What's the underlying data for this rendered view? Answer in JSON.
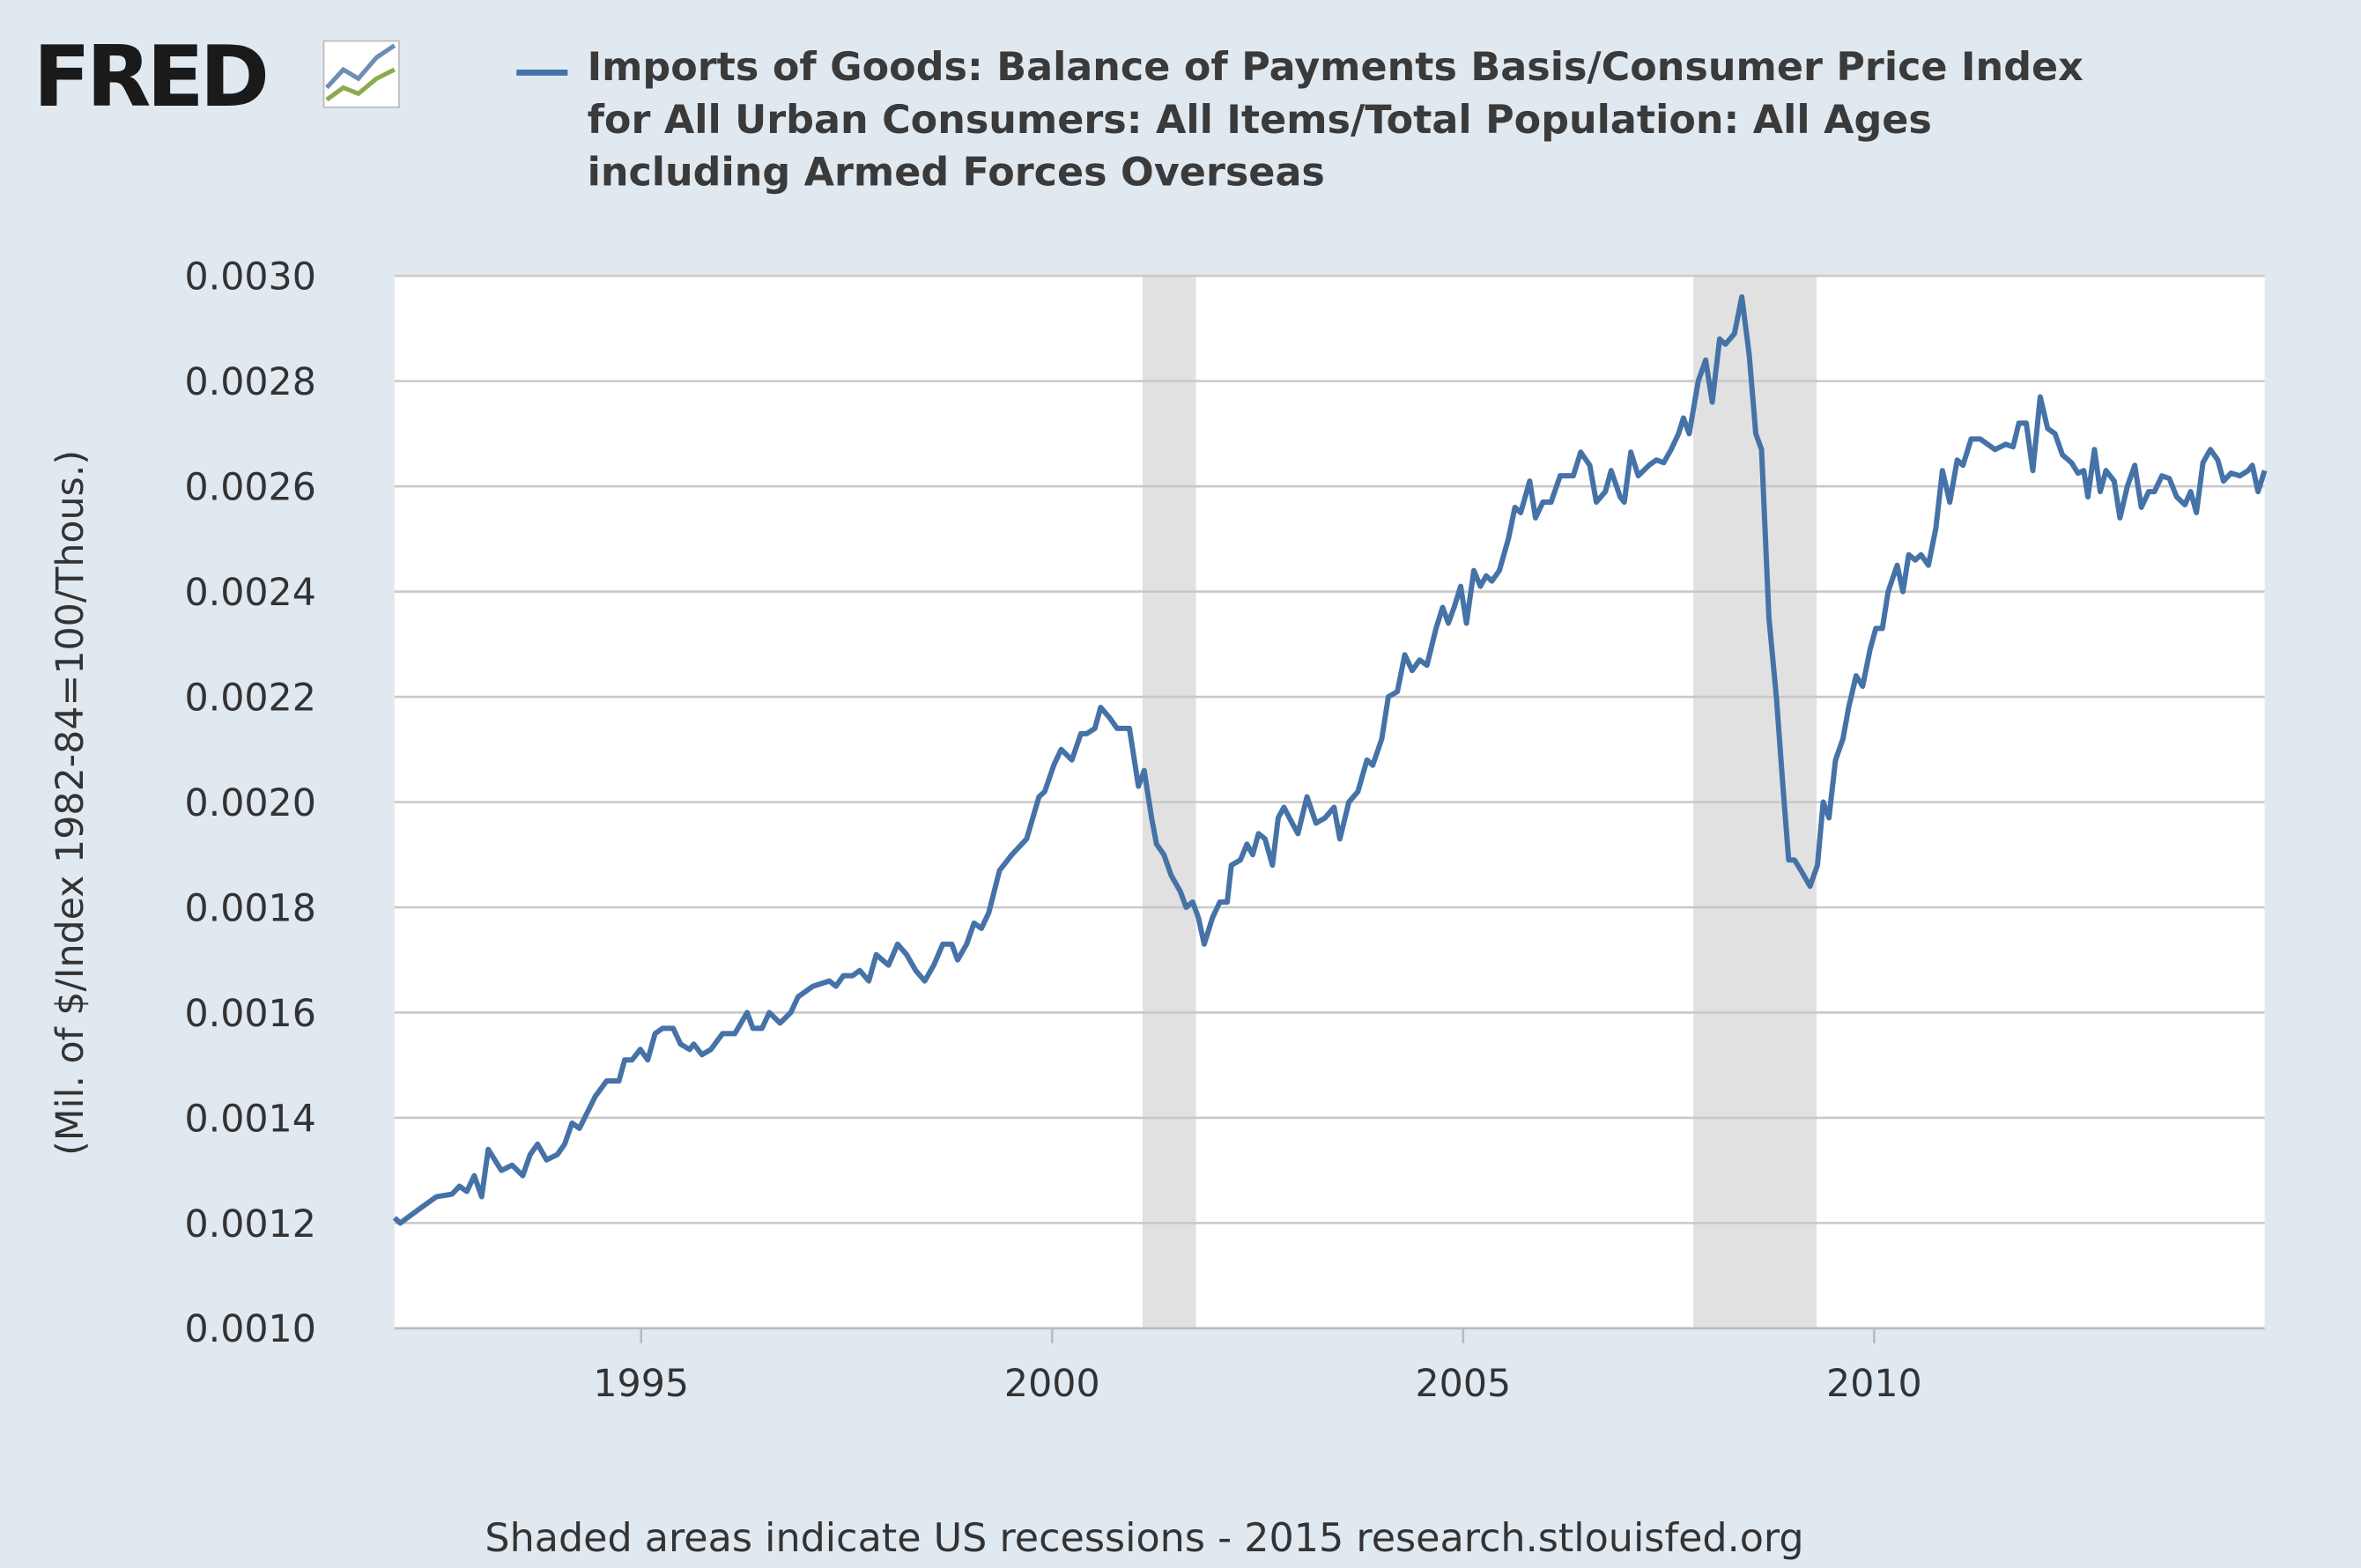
{
  "logo": "FRED",
  "chart_data": {
    "type": "line",
    "title": "Imports of Goods: Balance of Payments Basis/Consumer Price Index for All Urban Consumers: All Items/Total Population: All Ages including Armed Forces Overseas",
    "y_label": "(Mil. of $/Index 1982-84=100/Thous.)",
    "note": "Shaded areas indicate US recessions - 2015 research.stlouisfed.org",
    "xlim": [
      1992,
      2014.75
    ],
    "xticks": [
      1995,
      2000,
      2005,
      2010
    ],
    "ylim": [
      0.001,
      0.003
    ],
    "yticks": [
      {
        "value": 0.001,
        "label": "0.0010"
      },
      0.0012,
      0.0014,
      0.0016,
      0.0018,
      {
        "value": 0.002,
        "label": "0.0020"
      },
      0.0022,
      0.0024,
      0.0026,
      0.0028,
      {
        "value": 0.003,
        "label": "0.0030"
      }
    ],
    "grid": true,
    "recessions": [
      [
        2001.1,
        2001.75
      ],
      [
        2007.8,
        2009.3
      ]
    ],
    "recession_color": "#e1e1e1",
    "series": [
      {
        "name": "Imports of Goods: Balance of Payments Basis/Consumer Price Index for All Urban Consumers: All Items/Total Population: All Ages including Armed Forces Overseas",
        "color": "#4572a7",
        "x": [
          1992,
          1992.07,
          1992.33,
          1992.51,
          1992.7,
          1992.79,
          1992.88,
          1992.97,
          1993.06,
          1993.14,
          1993.3,
          1993.43,
          1993.56,
          1993.65,
          1993.74,
          1993.85,
          1993.98,
          1994.07,
          1994.16,
          1994.25,
          1994.44,
          1994.58,
          1994.73,
          1994.8,
          1994.89,
          1994.99,
          1995.08,
          1995.17,
          1995.26,
          1995.39,
          1995.48,
          1995.59,
          1995.64,
          1995.74,
          1995.85,
          1995.99,
          1996.14,
          1996.29,
          1996.36,
          1996.47,
          1996.56,
          1996.69,
          1996.82,
          1996.91,
          1997.09,
          1997.29,
          1997.37,
          1997.46,
          1997.57,
          1997.66,
          1997.77,
          1997.86,
          1998.01,
          1998.12,
          1998.23,
          1998.34,
          1998.45,
          1998.56,
          1998.67,
          1998.78,
          1998.85,
          1998.96,
          1999.05,
          1999.14,
          1999.23,
          1999.36,
          1999.51,
          1999.69,
          1999.84,
          1999.91,
          2000.02,
          2000.11,
          2000.24,
          2000.35,
          2000.42,
          2000.52,
          2000.59,
          2000.7,
          2000.79,
          2000.94,
          2001.05,
          2001.12,
          2001.21,
          2001.27,
          2001.36,
          2001.45,
          2001.56,
          2001.63,
          2001.71,
          2001.78,
          2001.85,
          2001.95,
          2002.04,
          2002.13,
          2002.18,
          2002.29,
          2002.37,
          2002.44,
          2002.51,
          2002.59,
          2002.68,
          2002.75,
          2002.82,
          2002.92,
          2002.99,
          2003.1,
          2003.21,
          2003.32,
          2003.43,
          2003.5,
          2003.61,
          2003.72,
          2003.83,
          2003.9,
          2004.01,
          2004.09,
          2004.2,
          2004.29,
          2004.38,
          2004.47,
          2004.56,
          2004.67,
          2004.75,
          2004.82,
          2004.89,
          2004.97,
          2005.04,
          2005.13,
          2005.21,
          2005.28,
          2005.35,
          2005.44,
          2005.55,
          2005.63,
          2005.7,
          2005.81,
          2005.88,
          2005.97,
          2006.07,
          2006.18,
          2006.34,
          2006.43,
          2006.54,
          2006.62,
          2006.73,
          2006.8,
          2006.91,
          2006.96,
          2007.04,
          2007.13,
          2007.26,
          2007.35,
          2007.44,
          2007.53,
          2007.62,
          2007.68,
          2007.75,
          2007.86,
          2007.95,
          2008.03,
          2008.12,
          2008.19,
          2008.3,
          2008.39,
          2008.48,
          2008.56,
          2008.63,
          2008.72,
          2008.81,
          2008.89,
          2008.96,
          2009.03,
          2009.11,
          2009.22,
          2009.31,
          2009.38,
          2009.45,
          2009.53,
          2009.62,
          2009.69,
          2009.78,
          2009.86,
          2009.95,
          2010.02,
          2010.1,
          2010.17,
          2010.28,
          2010.35,
          2010.42,
          2010.5,
          2010.57,
          2010.66,
          2010.75,
          2010.83,
          2010.92,
          2011.01,
          2011.08,
          2011.18,
          2011.29,
          2011.38,
          2011.47,
          2011.6,
          2011.69,
          2011.76,
          2011.85,
          2011.93,
          2012.02,
          2012.11,
          2012.2,
          2012.29,
          2012.4,
          2012.48,
          2012.55,
          2012.6,
          2012.68,
          2012.75,
          2012.82,
          2012.92,
          2012.99,
          2013.08,
          2013.17,
          2013.25,
          2013.34,
          2013.41,
          2013.5,
          2013.59,
          2013.68,
          2013.78,
          2013.85,
          2013.92,
          2014,
          2014.09,
          2014.18,
          2014.25,
          2014.34,
          2014.45,
          2014.55,
          2014.6,
          2014.67,
          2014.75
        ],
        "values": [
          0.00121,
          0.0012,
          0.00123,
          0.00125,
          0.001255,
          0.00127,
          0.00126,
          0.00129,
          0.00125,
          0.00134,
          0.0013,
          0.00131,
          0.00129,
          0.00133,
          0.00135,
          0.00132,
          0.00133,
          0.00135,
          0.00139,
          0.00138,
          0.00144,
          0.00147,
          0.00147,
          0.00151,
          0.00151,
          0.00153,
          0.00151,
          0.00156,
          0.00157,
          0.00157,
          0.00154,
          0.00153,
          0.00154,
          0.00152,
          0.00153,
          0.00156,
          0.00156,
          0.0016,
          0.00157,
          0.00157,
          0.0016,
          0.00158,
          0.0016,
          0.00163,
          0.00165,
          0.00166,
          0.00165,
          0.00167,
          0.00167,
          0.00168,
          0.00166,
          0.00171,
          0.00169,
          0.00173,
          0.00171,
          0.00168,
          0.00166,
          0.00169,
          0.00173,
          0.00173,
          0.0017,
          0.00173,
          0.00177,
          0.00176,
          0.00179,
          0.00187,
          0.0019,
          0.00193,
          0.00201,
          0.00202,
          0.00207,
          0.0021,
          0.00208,
          0.00213,
          0.00213,
          0.00214,
          0.00218,
          0.00216,
          0.00214,
          0.00214,
          0.00203,
          0.00206,
          0.00197,
          0.00192,
          0.0019,
          0.00186,
          0.00183,
          0.0018,
          0.00181,
          0.00178,
          0.00173,
          0.00178,
          0.00181,
          0.00181,
          0.00188,
          0.00189,
          0.00192,
          0.0019,
          0.00194,
          0.00193,
          0.00188,
          0.00197,
          0.00199,
          0.00196,
          0.00194,
          0.00201,
          0.00196,
          0.00197,
          0.00199,
          0.00193,
          0.002,
          0.00202,
          0.00208,
          0.00207,
          0.00212,
          0.0022,
          0.00221,
          0.00228,
          0.00225,
          0.00227,
          0.00226,
          0.00233,
          0.00237,
          0.00234,
          0.00237,
          0.00241,
          0.00234,
          0.00244,
          0.00241,
          0.00243,
          0.00242,
          0.00244,
          0.0025,
          0.00256,
          0.00255,
          0.00261,
          0.00254,
          0.00257,
          0.00257,
          0.00262,
          0.00262,
          0.002665,
          0.00264,
          0.00257,
          0.00259,
          0.00263,
          0.00258,
          0.00257,
          0.002665,
          0.00262,
          0.00264,
          0.00265,
          0.002645,
          0.00267,
          0.0027,
          0.00273,
          0.0027,
          0.0028,
          0.00284,
          0.00276,
          0.00288,
          0.00287,
          0.00289,
          0.00296,
          0.00285,
          0.0027,
          0.00267,
          0.00235,
          0.0022,
          0.00203,
          0.00189,
          0.00189,
          0.00187,
          0.00184,
          0.00188,
          0.002,
          0.00197,
          0.00208,
          0.00212,
          0.00218,
          0.00224,
          0.00222,
          0.00229,
          0.00233,
          0.00233,
          0.0024,
          0.00245,
          0.0024,
          0.00247,
          0.00246,
          0.00247,
          0.00245,
          0.00252,
          0.00263,
          0.00257,
          0.00265,
          0.00264,
          0.00269,
          0.00269,
          0.00268,
          0.00267,
          0.00268,
          0.002675,
          0.00272,
          0.00272,
          0.00263,
          0.00277,
          0.00271,
          0.0027,
          0.00266,
          0.002645,
          0.002625,
          0.00263,
          0.00258,
          0.00267,
          0.00259,
          0.00263,
          0.00261,
          0.00254,
          0.0026,
          0.00264,
          0.00256,
          0.00259,
          0.00259,
          0.00262,
          0.002615,
          0.00258,
          0.002565,
          0.00259,
          0.00255,
          0.002645,
          0.00267,
          0.00265,
          0.00261,
          0.002625,
          0.00262,
          0.00263,
          0.00264,
          0.00259,
          0.00263
        ]
      }
    ]
  }
}
